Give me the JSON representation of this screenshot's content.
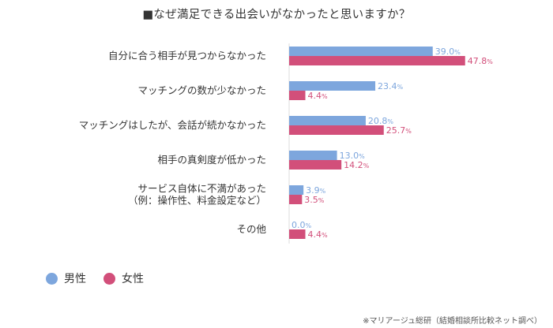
{
  "title": "■なぜ満足できる出会いがなかったと思いますか？",
  "colors": {
    "male": "#7da6dd",
    "female": "#d24f7a"
  },
  "legend": [
    {
      "label": "男性",
      "color": "#7da6dd"
    },
    {
      "label": "女性",
      "color": "#d24f7a"
    }
  ],
  "source": "※マリアージュ総研（結婚相談所比較ネット調べ）",
  "chart_data": {
    "type": "bar",
    "orientation": "horizontal",
    "value_suffix": "%",
    "categories": [
      [
        "自分に合う相手が見つからなかった"
      ],
      [
        "マッチングの数が少なかった"
      ],
      [
        "マッチングはしたが、会話が続かなかった"
      ],
      [
        "相手の真剣度が低かった"
      ],
      [
        "サービス自体に不満があった",
        "（例：操作性、料金設定など）"
      ],
      [
        "その他"
      ]
    ],
    "series": [
      {
        "name": "男性",
        "values": [
          39.0,
          23.4,
          20.8,
          13.0,
          3.9,
          0.0
        ]
      },
      {
        "name": "女性",
        "values": [
          47.8,
          4.4,
          25.7,
          14.2,
          3.5,
          4.4
        ]
      }
    ],
    "xlim": [
      0,
      50
    ],
    "grid": false,
    "legend_position": "bottom-left"
  }
}
